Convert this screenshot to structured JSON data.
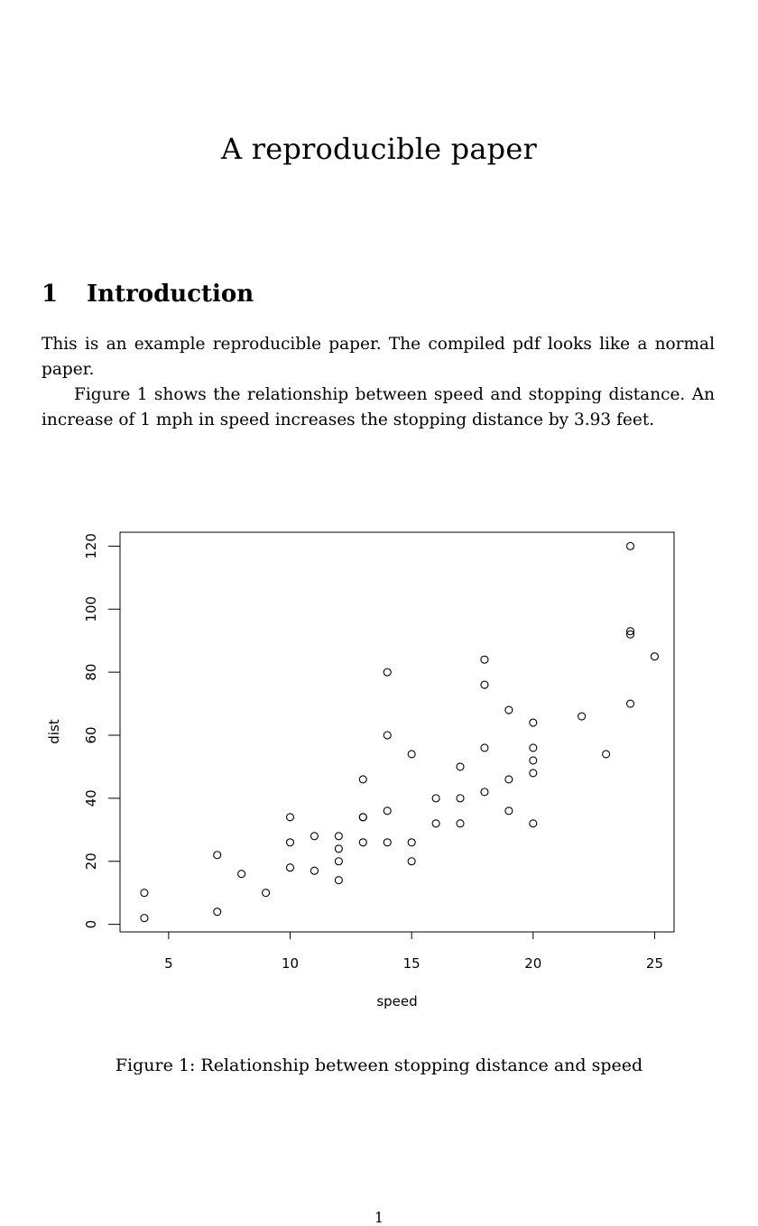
{
  "paper": {
    "title": "A reproducible paper",
    "section": {
      "number": "1",
      "title": "Introduction"
    },
    "paragraphs": [
      "This is an example reproducible paper. The compiled pdf looks like a normal paper.",
      "Figure 1 shows the relationship between speed and stopping distance. An increase of 1 mph in speed increases the stopping distance by 3.93 feet."
    ],
    "figure_caption": "Figure 1: Relationship between stopping distance and speed",
    "page_number": "1"
  },
  "chart_data": {
    "type": "scatter",
    "title": "",
    "xlabel": "speed",
    "ylabel": "dist",
    "xlim": [
      3,
      25.8
    ],
    "ylim": [
      -2.4,
      124.4
    ],
    "xticks": [
      5,
      10,
      15,
      20,
      25
    ],
    "yticks": [
      0,
      20,
      40,
      60,
      80,
      100,
      120
    ],
    "grid": false,
    "marker": "open-circle",
    "points": [
      {
        "x": 4,
        "y": 2
      },
      {
        "x": 4,
        "y": 10
      },
      {
        "x": 7,
        "y": 4
      },
      {
        "x": 7,
        "y": 22
      },
      {
        "x": 8,
        "y": 16
      },
      {
        "x": 9,
        "y": 10
      },
      {
        "x": 10,
        "y": 18
      },
      {
        "x": 10,
        "y": 26
      },
      {
        "x": 10,
        "y": 34
      },
      {
        "x": 11,
        "y": 17
      },
      {
        "x": 11,
        "y": 28
      },
      {
        "x": 12,
        "y": 14
      },
      {
        "x": 12,
        "y": 20
      },
      {
        "x": 12,
        "y": 24
      },
      {
        "x": 12,
        "y": 28
      },
      {
        "x": 13,
        "y": 26
      },
      {
        "x": 13,
        "y": 34
      },
      {
        "x": 13,
        "y": 34
      },
      {
        "x": 13,
        "y": 46
      },
      {
        "x": 14,
        "y": 26
      },
      {
        "x": 14,
        "y": 36
      },
      {
        "x": 14,
        "y": 60
      },
      {
        "x": 14,
        "y": 80
      },
      {
        "x": 15,
        "y": 20
      },
      {
        "x": 15,
        "y": 26
      },
      {
        "x": 15,
        "y": 54
      },
      {
        "x": 16,
        "y": 32
      },
      {
        "x": 16,
        "y": 40
      },
      {
        "x": 17,
        "y": 32
      },
      {
        "x": 17,
        "y": 40
      },
      {
        "x": 17,
        "y": 50
      },
      {
        "x": 18,
        "y": 42
      },
      {
        "x": 18,
        "y": 56
      },
      {
        "x": 18,
        "y": 76
      },
      {
        "x": 18,
        "y": 84
      },
      {
        "x": 19,
        "y": 36
      },
      {
        "x": 19,
        "y": 46
      },
      {
        "x": 19,
        "y": 68
      },
      {
        "x": 20,
        "y": 32
      },
      {
        "x": 20,
        "y": 48
      },
      {
        "x": 20,
        "y": 52
      },
      {
        "x": 20,
        "y": 56
      },
      {
        "x": 20,
        "y": 64
      },
      {
        "x": 22,
        "y": 66
      },
      {
        "x": 23,
        "y": 54
      },
      {
        "x": 24,
        "y": 70
      },
      {
        "x": 24,
        "y": 92
      },
      {
        "x": 24,
        "y": 93
      },
      {
        "x": 24,
        "y": 120
      },
      {
        "x": 25,
        "y": 85
      }
    ]
  }
}
